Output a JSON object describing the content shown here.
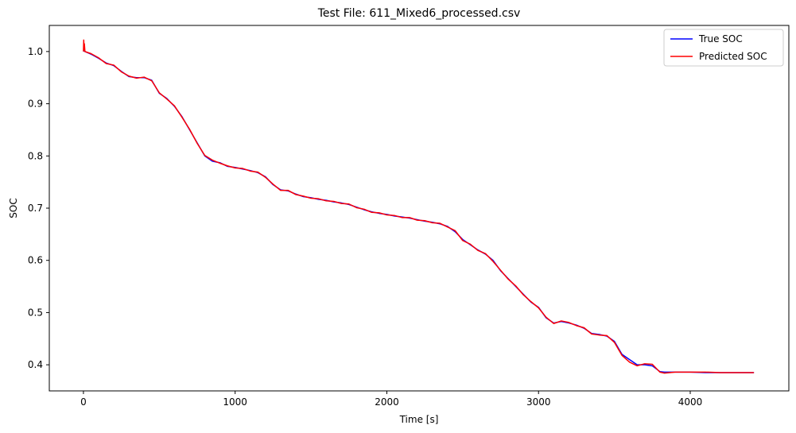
{
  "chart_data": {
    "type": "line",
    "title": "Test File: 611_Mixed6_processed.csv",
    "xlabel": "Time [s]",
    "ylabel": "SOC",
    "xlim": [
      -225,
      4650
    ],
    "ylim": [
      0.35,
      1.05
    ],
    "xticks": [
      0,
      1000,
      2000,
      3000,
      4000
    ],
    "yticks": [
      0.4,
      0.5,
      0.6,
      0.7,
      0.8,
      0.9,
      1.0
    ],
    "xtick_labels": [
      "0",
      "1000",
      "2000",
      "3000",
      "4000"
    ],
    "ytick_labels": [
      "0.4",
      "0.5",
      "0.6",
      "0.7",
      "0.8",
      "0.9",
      "1.0"
    ],
    "grid": false,
    "legend_position": "top-right",
    "series": [
      {
        "name": "True SOC",
        "color": "#0000ff",
        "x": [
          0,
          10,
          50,
          100,
          150,
          200,
          250,
          300,
          350,
          400,
          450,
          500,
          550,
          600,
          650,
          700,
          750,
          800,
          850,
          900,
          950,
          1000,
          1050,
          1100,
          1150,
          1200,
          1250,
          1300,
          1350,
          1400,
          1450,
          1500,
          1550,
          1600,
          1650,
          1700,
          1750,
          1800,
          1850,
          1900,
          1950,
          2000,
          2050,
          2100,
          2150,
          2200,
          2250,
          2300,
          2350,
          2400,
          2450,
          2500,
          2550,
          2600,
          2650,
          2700,
          2750,
          2800,
          2850,
          2900,
          2950,
          3000,
          3050,
          3100,
          3150,
          3200,
          3250,
          3300,
          3350,
          3400,
          3450,
          3500,
          3550,
          3600,
          3650,
          3700,
          3750,
          3800,
          3830,
          3900,
          4000,
          4100,
          4200,
          4300,
          4420
        ],
        "y": [
          1.002,
          1.0,
          0.995,
          0.987,
          0.978,
          0.973,
          0.962,
          0.952,
          0.95,
          0.95,
          0.945,
          0.92,
          0.91,
          0.895,
          0.875,
          0.85,
          0.825,
          0.8,
          0.79,
          0.787,
          0.78,
          0.778,
          0.775,
          0.772,
          0.768,
          0.76,
          0.745,
          0.735,
          0.733,
          0.727,
          0.722,
          0.72,
          0.717,
          0.715,
          0.712,
          0.71,
          0.707,
          0.702,
          0.697,
          0.693,
          0.69,
          0.688,
          0.685,
          0.683,
          0.681,
          0.678,
          0.675,
          0.673,
          0.67,
          0.665,
          0.655,
          0.64,
          0.63,
          0.62,
          0.612,
          0.6,
          0.58,
          0.565,
          0.55,
          0.535,
          0.52,
          0.51,
          0.49,
          0.48,
          0.483,
          0.48,
          0.476,
          0.47,
          0.46,
          0.458,
          0.455,
          0.445,
          0.42,
          0.41,
          0.4,
          0.4,
          0.398,
          0.387,
          0.386,
          0.386,
          0.386,
          0.385,
          0.385,
          0.385,
          0.385
        ]
      },
      {
        "name": "Predicted SOC",
        "color": "#ff0000",
        "x": [
          0,
          2,
          4,
          6,
          10,
          50,
          100,
          150,
          200,
          250,
          300,
          350,
          400,
          450,
          500,
          550,
          600,
          650,
          700,
          750,
          800,
          850,
          900,
          950,
          1000,
          1050,
          1100,
          1150,
          1200,
          1250,
          1300,
          1350,
          1400,
          1450,
          1500,
          1550,
          1600,
          1650,
          1700,
          1750,
          1800,
          1850,
          1900,
          1950,
          2000,
          2050,
          2100,
          2150,
          2200,
          2250,
          2300,
          2350,
          2400,
          2450,
          2500,
          2550,
          2600,
          2650,
          2700,
          2750,
          2800,
          2850,
          2900,
          2950,
          3000,
          3050,
          3100,
          3150,
          3200,
          3250,
          3300,
          3350,
          3400,
          3450,
          3500,
          3550,
          3600,
          3650,
          3700,
          3750,
          3800,
          3830,
          3900,
          4000,
          4100,
          4200,
          4300,
          4420
        ],
        "y": [
          1.0,
          1.022,
          1.003,
          1.015,
          1.0,
          0.996,
          0.988,
          0.977,
          0.974,
          0.961,
          0.953,
          0.949,
          0.951,
          0.944,
          0.921,
          0.909,
          0.896,
          0.874,
          0.851,
          0.824,
          0.801,
          0.792,
          0.786,
          0.781,
          0.777,
          0.776,
          0.771,
          0.769,
          0.759,
          0.746,
          0.734,
          0.734,
          0.726,
          0.723,
          0.719,
          0.718,
          0.714,
          0.713,
          0.709,
          0.708,
          0.701,
          0.698,
          0.692,
          0.691,
          0.687,
          0.686,
          0.682,
          0.682,
          0.677,
          0.676,
          0.672,
          0.671,
          0.664,
          0.657,
          0.638,
          0.631,
          0.619,
          0.613,
          0.598,
          0.581,
          0.564,
          0.551,
          0.534,
          0.521,
          0.509,
          0.491,
          0.479,
          0.484,
          0.481,
          0.475,
          0.471,
          0.459,
          0.457,
          0.456,
          0.443,
          0.418,
          0.405,
          0.398,
          0.402,
          0.401,
          0.386,
          0.384,
          0.386,
          0.386,
          0.386,
          0.385,
          0.385,
          0.385
        ]
      }
    ]
  }
}
